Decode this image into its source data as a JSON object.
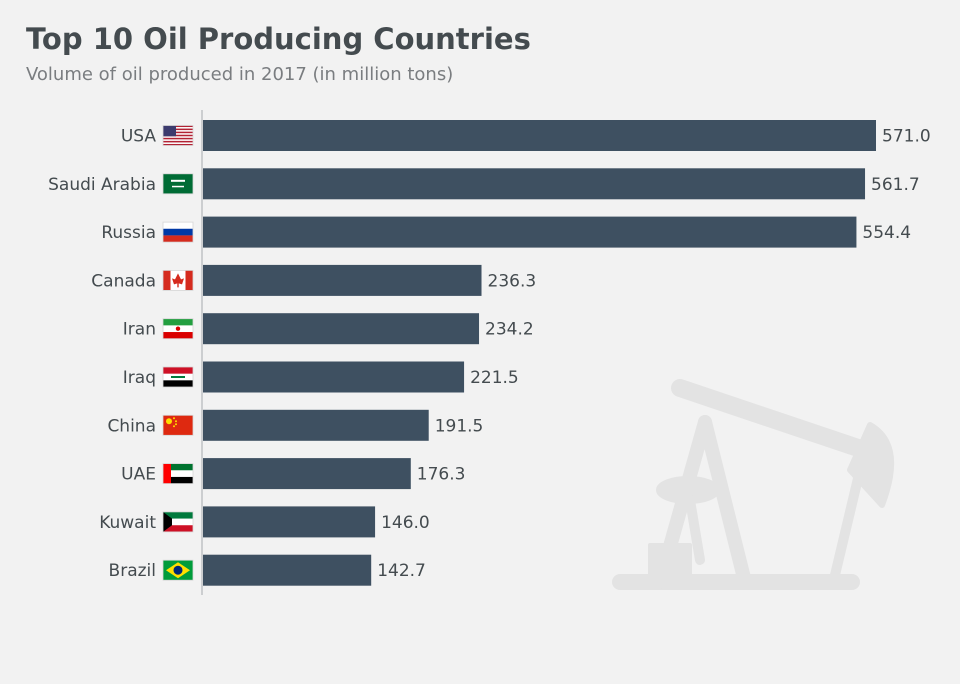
{
  "header": {
    "title": "Top 10 Oil Producing Countries",
    "subtitle": "Volume of oil produced in 2017 (in million tons)"
  },
  "colors": {
    "bar": "#3e5061",
    "axis": "#bfc2c4",
    "text": "#444b4f",
    "watermark": "#e3e3e3"
  },
  "chart_data": {
    "type": "bar",
    "orientation": "horizontal",
    "title": "Top 10 Oil Producing Countries",
    "subtitle": "Volume of oil produced in 2017 (in million tons)",
    "categories": [
      "USA",
      "Saudi Arabia",
      "Russia",
      "Canada",
      "Iran",
      "Iraq",
      "China",
      "UAE",
      "Kuwait",
      "Brazil"
    ],
    "flags": [
      "flag-usa-icon",
      "flag-saudi-arabia-icon",
      "flag-russia-icon",
      "flag-canada-icon",
      "flag-iran-icon",
      "flag-iraq-icon",
      "flag-china-icon",
      "flag-uae-icon",
      "flag-kuwait-icon",
      "flag-brazil-icon"
    ],
    "values": [
      571.0,
      561.7,
      554.4,
      236.3,
      234.2,
      221.5,
      191.5,
      176.3,
      146.0,
      142.7
    ],
    "value_labels": [
      "571.0",
      "561.7",
      "554.4",
      "236.3",
      "234.2",
      "221.5",
      "191.5",
      "176.3",
      "146.0",
      "142.7"
    ],
    "xlim": [
      0,
      571.0
    ],
    "grid": false,
    "legend": "none"
  },
  "watermark_icon": "oil-pump-jack-icon"
}
